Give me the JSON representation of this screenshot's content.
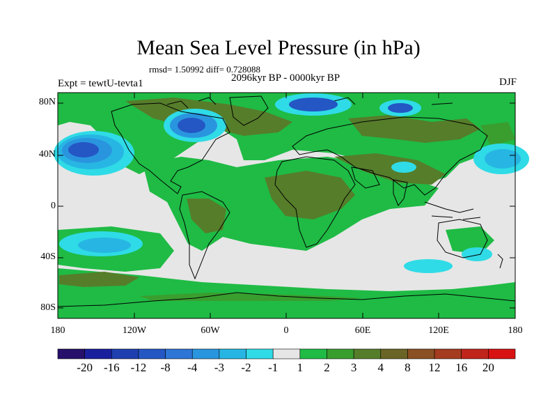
{
  "title": "Mean Sea Level Pressure (in hPa)",
  "stats_text": "rmsd= 1.50992 diff= 0.728088",
  "period_text": "2096kyr BP - 0000kyr BP",
  "experiment_text": "Expt = tewtU-tevta1",
  "season": "DJF",
  "lat_labels": [
    "80N",
    "40N",
    "0",
    "40S",
    "80S"
  ],
  "lon_labels": [
    "180",
    "120W",
    "60W",
    "0",
    "60E",
    "120E",
    "180"
  ],
  "colorbar": {
    "colors": [
      "#26106b",
      "#1a1f9e",
      "#1f3fb0",
      "#2456c4",
      "#2d75d6",
      "#2a95df",
      "#27b6e3",
      "#2fdbe6",
      "#e6e6e6",
      "#1fbb45",
      "#3a9e2f",
      "#567d2a",
      "#6a6426",
      "#8a4f23",
      "#a53b1f",
      "#c0241b",
      "#d81212"
    ],
    "labels": [
      "-20",
      "-16",
      "-12",
      "-8",
      "-4",
      "-3",
      "-2",
      "-1",
      "1",
      "2",
      "3",
      "4",
      "8",
      "12",
      "16",
      "20"
    ]
  },
  "colors": {
    "neutral": "#e6e6e6",
    "green": "#1fbb45",
    "dark_green": "#3a9e2f",
    "olive": "#567d2a",
    "cyan": "#2fdbe6",
    "light_blue": "#27b6e3",
    "blue": "#2a95df",
    "deep_blue": "#2456c4"
  }
}
